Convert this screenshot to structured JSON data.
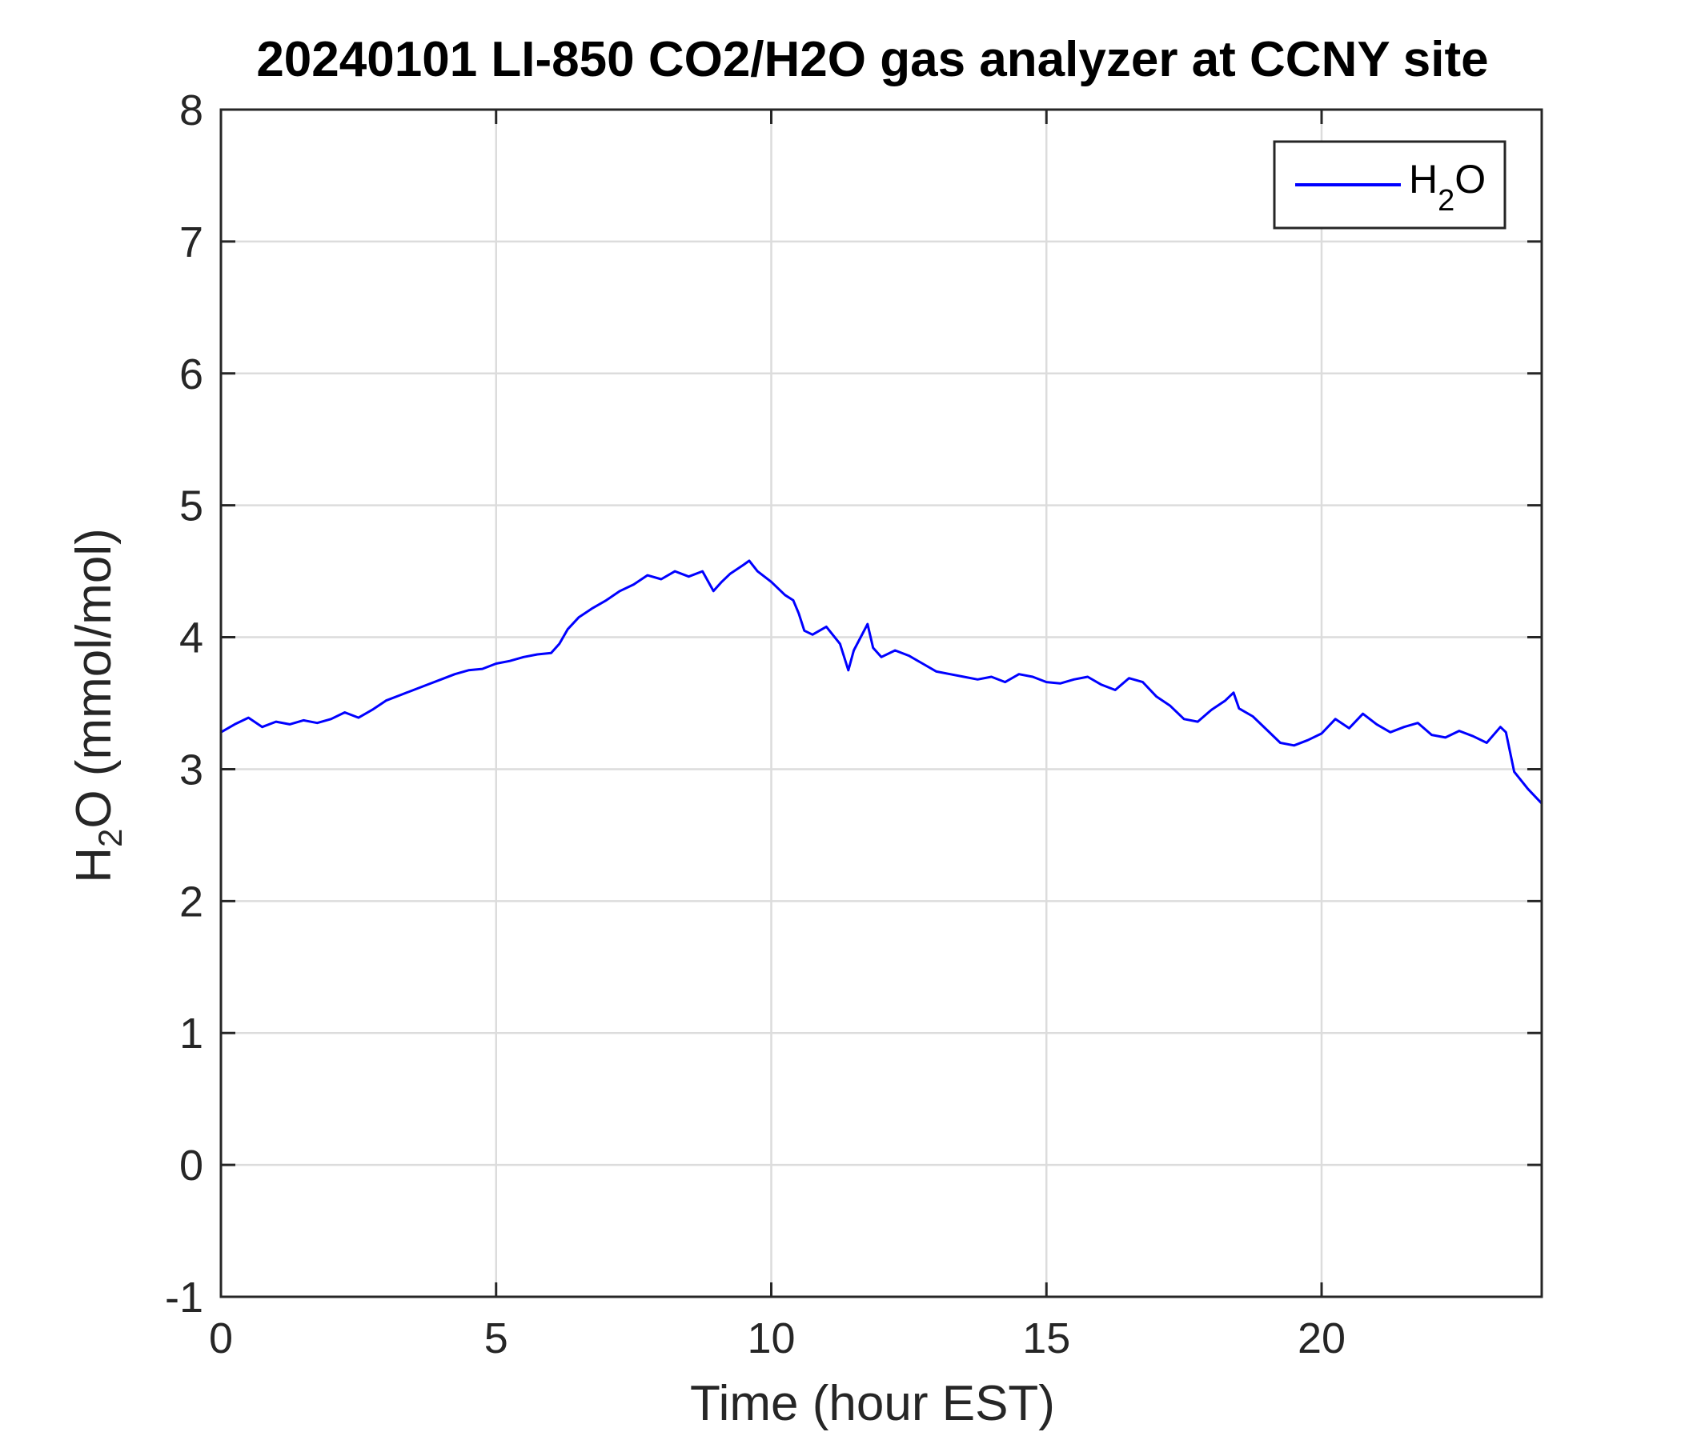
{
  "chart_data": {
    "type": "line",
    "title": "20240101 LI-850 CO2/H2O gas analyzer at CCNY site",
    "xlabel": "Time (hour EST)",
    "ylabel": {
      "main": "H",
      "subscript": "2",
      "rest": "O (mmol/mol)"
    },
    "xlim": [
      0,
      24
    ],
    "ylim": [
      -1,
      8
    ],
    "xticks": [
      0,
      5,
      10,
      15,
      20
    ],
    "yticks": [
      -1,
      0,
      1,
      2,
      3,
      4,
      5,
      6,
      7,
      8
    ],
    "grid": true,
    "legend": {
      "position": "top-right",
      "entries": [
        {
          "main": "H",
          "subscript": "2",
          "rest": "O",
          "color": "#0000ff"
        }
      ]
    },
    "series": [
      {
        "name": "H2O",
        "color": "#0000ff",
        "x": [
          0,
          0.25,
          0.5,
          0.75,
          1.0,
          1.25,
          1.5,
          1.75,
          2.0,
          2.25,
          2.5,
          2.75,
          3.0,
          3.25,
          3.5,
          3.75,
          4.0,
          4.25,
          4.5,
          4.75,
          5.0,
          5.25,
          5.5,
          5.75,
          6.0,
          6.15,
          6.3,
          6.5,
          6.75,
          7.0,
          7.25,
          7.5,
          7.75,
          8.0,
          8.25,
          8.5,
          8.75,
          8.95,
          9.1,
          9.25,
          9.5,
          9.6,
          9.75,
          10.0,
          10.25,
          10.4,
          10.5,
          10.6,
          10.75,
          11.0,
          11.25,
          11.4,
          11.5,
          11.75,
          11.85,
          12.0,
          12.25,
          12.5,
          12.75,
          13.0,
          13.25,
          13.5,
          13.75,
          14.0,
          14.25,
          14.5,
          14.75,
          15.0,
          15.25,
          15.5,
          15.75,
          16.0,
          16.25,
          16.5,
          16.75,
          17.0,
          17.25,
          17.5,
          17.75,
          18.0,
          18.25,
          18.4,
          18.5,
          18.75,
          19.0,
          19.25,
          19.5,
          19.75,
          20.0,
          20.25,
          20.5,
          20.75,
          21.0,
          21.25,
          21.5,
          21.75,
          22.0,
          22.25,
          22.5,
          22.75,
          23.0,
          23.25,
          23.35,
          23.5,
          23.75,
          24.0
        ],
        "y": [
          3.28,
          3.34,
          3.39,
          3.32,
          3.36,
          3.34,
          3.37,
          3.35,
          3.38,
          3.43,
          3.39,
          3.45,
          3.52,
          3.56,
          3.6,
          3.64,
          3.68,
          3.72,
          3.75,
          3.76,
          3.8,
          3.82,
          3.85,
          3.87,
          3.88,
          3.95,
          4.06,
          4.15,
          4.22,
          4.28,
          4.35,
          4.4,
          4.47,
          4.44,
          4.5,
          4.46,
          4.5,
          4.35,
          4.42,
          4.48,
          4.55,
          4.58,
          4.5,
          4.42,
          4.32,
          4.28,
          4.18,
          4.05,
          4.02,
          4.08,
          3.95,
          3.75,
          3.9,
          4.1,
          3.92,
          3.85,
          3.9,
          3.86,
          3.8,
          3.74,
          3.72,
          3.7,
          3.68,
          3.7,
          3.66,
          3.72,
          3.7,
          3.66,
          3.65,
          3.68,
          3.7,
          3.64,
          3.6,
          3.69,
          3.66,
          3.55,
          3.48,
          3.38,
          3.36,
          3.45,
          3.52,
          3.58,
          3.46,
          3.4,
          3.3,
          3.2,
          3.18,
          3.22,
          3.27,
          3.38,
          3.31,
          3.42,
          3.34,
          3.28,
          3.32,
          3.35,
          3.26,
          3.24,
          3.29,
          3.25,
          3.2,
          3.32,
          3.28,
          2.98,
          2.85,
          2.74
        ]
      }
    ]
  }
}
